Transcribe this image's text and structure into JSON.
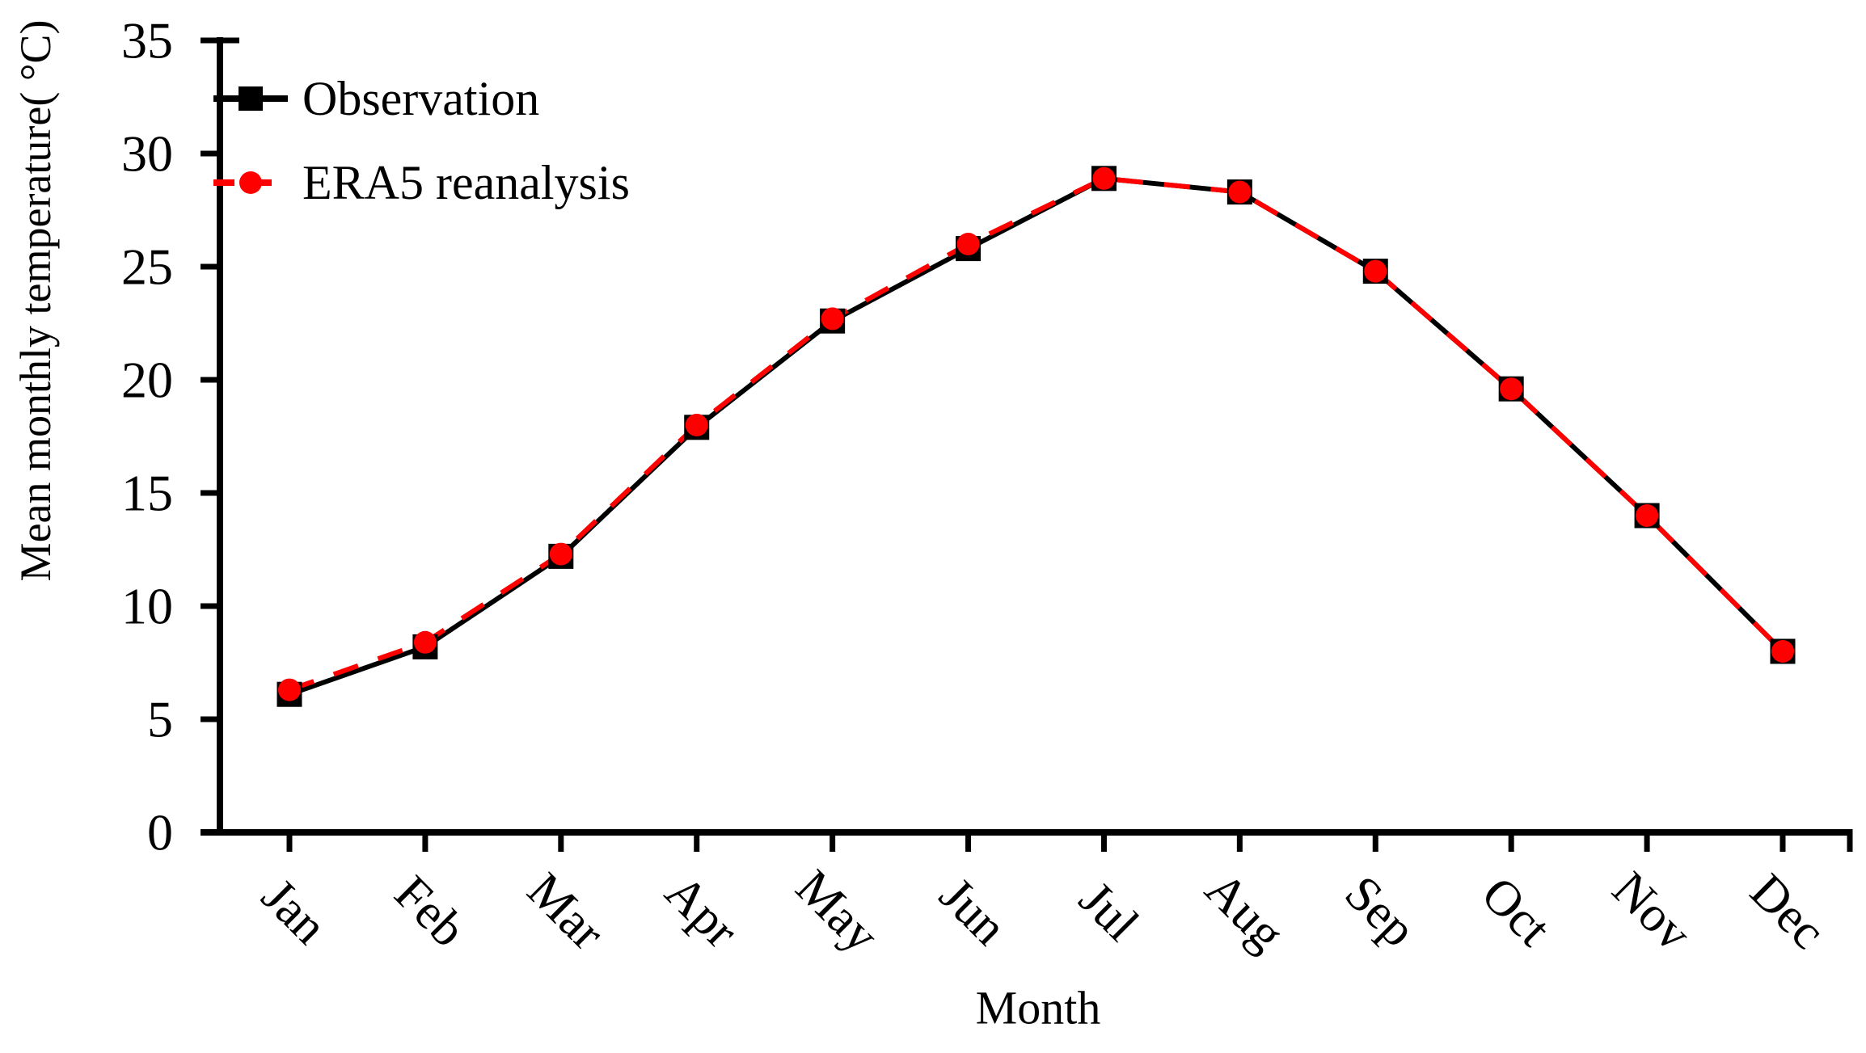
{
  "figure": {
    "background": "#ffffff"
  },
  "chart_data": {
    "type": "line",
    "title": "",
    "xlabel": "Month",
    "ylabel": "Mean monthly temperature( °C)",
    "categories": [
      "Jan",
      "Feb",
      "Mar",
      "Apr",
      "May",
      "Jun",
      "Jul",
      "Aug",
      "Sep",
      "Oct",
      "Nov",
      "Dec"
    ],
    "ylim": [
      0,
      35
    ],
    "yticks": [
      0,
      5,
      10,
      15,
      20,
      25,
      30,
      35
    ],
    "grid": false,
    "legend_position": "top-left",
    "axis_color": "#000000",
    "series": [
      {
        "name": "Observation",
        "color": "#000000",
        "line_style": "solid",
        "marker": "square",
        "values": [
          6.1,
          8.2,
          12.2,
          17.9,
          22.6,
          25.8,
          28.9,
          28.3,
          24.8,
          19.6,
          14.0,
          8.0
        ]
      },
      {
        "name": "ERA5 reanalysis",
        "color": "#ff0000",
        "line_style": "dashed",
        "marker": "circle",
        "values": [
          6.3,
          8.4,
          12.3,
          18.0,
          22.7,
          26.0,
          28.9,
          28.3,
          24.8,
          19.6,
          14.0,
          8.0
        ]
      }
    ]
  }
}
